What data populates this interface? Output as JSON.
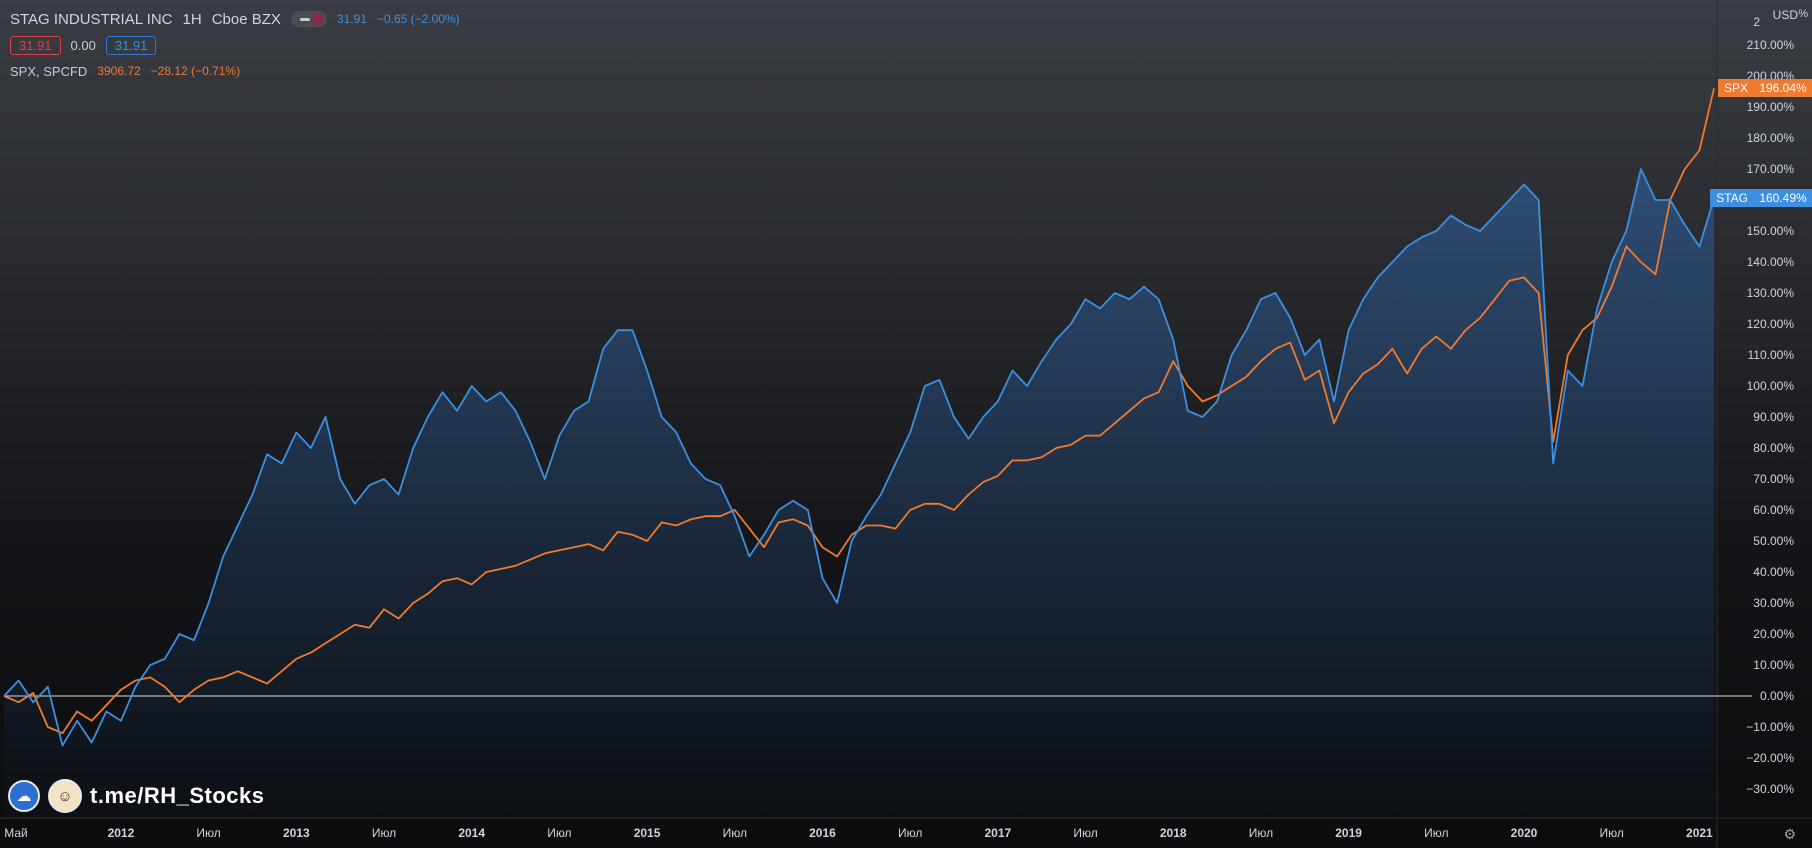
{
  "legend": {
    "symbol_title": "STAG INDUSTRIAL INC",
    "interval": "1H",
    "exchange": "Cboe BZX",
    "stag_quote": "31.91",
    "stag_change": "−0.65 (−2.00%)",
    "box_sell": "31.91",
    "spread": "0.00",
    "box_buy": "31.91",
    "compare_name": "SPX, SPCFD",
    "compare_quote": "3906.72",
    "compare_change": "−28.12 (−0.71%)"
  },
  "axis": {
    "currency": "USD",
    "scale_mode": "%",
    "scale_multiplier": "2",
    "right_labels": [
      "210.00%",
      "200.00%",
      "190.00%",
      "180.00%",
      "170.00%",
      "160.00%",
      "150.00%",
      "140.00%",
      "130.00%",
      "120.00%",
      "110.00%",
      "100.00%",
      "90.00%",
      "80.00%",
      "70.00%",
      "60.00%",
      "50.00%",
      "40.00%",
      "30.00%",
      "20.00%",
      "10.00%",
      "0.00%",
      "−10.00%",
      "−20.00%",
      "−30.00%"
    ],
    "time_labels": [
      {
        "text": "Май",
        "year": false
      },
      {
        "text": "2012",
        "year": true
      },
      {
        "text": "Июл",
        "year": false
      },
      {
        "text": "2013",
        "year": true
      },
      {
        "text": "Июл",
        "year": false
      },
      {
        "text": "2014",
        "year": true
      },
      {
        "text": "Июл",
        "year": false
      },
      {
        "text": "2015",
        "year": true
      },
      {
        "text": "Июл",
        "year": false
      },
      {
        "text": "2016",
        "year": true
      },
      {
        "text": "Июл",
        "year": false
      },
      {
        "text": "2017",
        "year": true
      },
      {
        "text": "Июл",
        "year": false
      },
      {
        "text": "2018",
        "year": true
      },
      {
        "text": "Июл",
        "year": false
      },
      {
        "text": "2019",
        "year": true
      },
      {
        "text": "Июл",
        "year": false
      },
      {
        "text": "2020",
        "year": true
      },
      {
        "text": "Июл",
        "year": false
      },
      {
        "text": "2021",
        "year": true
      }
    ]
  },
  "price_tags": {
    "spx": {
      "name": "SPX",
      "value": "196.04%"
    },
    "stag": {
      "name": "STAG",
      "value": "160.49%"
    }
  },
  "watermark": {
    "text": "t.me/RH_Stocks"
  },
  "colors": {
    "stag": "#3d8fe0",
    "spx": "#f07a2e",
    "baseline": "#d8dadf"
  },
  "chart_data": {
    "type": "line",
    "title": "STAG INDUSTRIAL INC",
    "x_range": [
      "2011-05",
      "2021-02"
    ],
    "ylim": [
      -35,
      215
    ],
    "y_unit": "%",
    "grid": false,
    "series": [
      {
        "name": "STAG",
        "color": "#3d8fe0",
        "points": [
          [
            "2011-05",
            0
          ],
          [
            "2011-06",
            5
          ],
          [
            "2011-07",
            -2
          ],
          [
            "2011-08",
            3
          ],
          [
            "2011-09",
            -16
          ],
          [
            "2011-10",
            -8
          ],
          [
            "2011-11",
            -15
          ],
          [
            "2011-12",
            -5
          ],
          [
            "2012-01",
            -8
          ],
          [
            "2012-02",
            3
          ],
          [
            "2012-03",
            10
          ],
          [
            "2012-04",
            12
          ],
          [
            "2012-05",
            20
          ],
          [
            "2012-06",
            18
          ],
          [
            "2012-07",
            30
          ],
          [
            "2012-08",
            45
          ],
          [
            "2012-09",
            55
          ],
          [
            "2012-10",
            65
          ],
          [
            "2012-11",
            78
          ],
          [
            "2012-12",
            75
          ],
          [
            "2013-01",
            85
          ],
          [
            "2013-02",
            80
          ],
          [
            "2013-03",
            90
          ],
          [
            "2013-04",
            70
          ],
          [
            "2013-05",
            62
          ],
          [
            "2013-06",
            68
          ],
          [
            "2013-07",
            70
          ],
          [
            "2013-08",
            65
          ],
          [
            "2013-09",
            80
          ],
          [
            "2013-10",
            90
          ],
          [
            "2013-11",
            98
          ],
          [
            "2013-12",
            92
          ],
          [
            "2014-01",
            100
          ],
          [
            "2014-02",
            95
          ],
          [
            "2014-03",
            98
          ],
          [
            "2014-04",
            92
          ],
          [
            "2014-05",
            82
          ],
          [
            "2014-06",
            70
          ],
          [
            "2014-07",
            84
          ],
          [
            "2014-08",
            92
          ],
          [
            "2014-09",
            95
          ],
          [
            "2014-10",
            112
          ],
          [
            "2014-11",
            118
          ],
          [
            "2014-12",
            118
          ],
          [
            "2015-01",
            105
          ],
          [
            "2015-02",
            90
          ],
          [
            "2015-03",
            85
          ],
          [
            "2015-04",
            75
          ],
          [
            "2015-05",
            70
          ],
          [
            "2015-06",
            68
          ],
          [
            "2015-07",
            58
          ],
          [
            "2015-08",
            45
          ],
          [
            "2015-09",
            52
          ],
          [
            "2015-10",
            60
          ],
          [
            "2015-11",
            63
          ],
          [
            "2015-12",
            60
          ],
          [
            "2016-01",
            38
          ],
          [
            "2016-02",
            30
          ],
          [
            "2016-03",
            50
          ],
          [
            "2016-04",
            58
          ],
          [
            "2016-05",
            65
          ],
          [
            "2016-06",
            75
          ],
          [
            "2016-07",
            85
          ],
          [
            "2016-08",
            100
          ],
          [
            "2016-09",
            102
          ],
          [
            "2016-10",
            90
          ],
          [
            "2016-11",
            83
          ],
          [
            "2016-12",
            90
          ],
          [
            "2017-01",
            95
          ],
          [
            "2017-02",
            105
          ],
          [
            "2017-03",
            100
          ],
          [
            "2017-04",
            108
          ],
          [
            "2017-05",
            115
          ],
          [
            "2017-06",
            120
          ],
          [
            "2017-07",
            128
          ],
          [
            "2017-08",
            125
          ],
          [
            "2017-09",
            130
          ],
          [
            "2017-10",
            128
          ],
          [
            "2017-11",
            132
          ],
          [
            "2017-12",
            128
          ],
          [
            "2018-01",
            115
          ],
          [
            "2018-02",
            92
          ],
          [
            "2018-03",
            90
          ],
          [
            "2018-04",
            95
          ],
          [
            "2018-05",
            110
          ],
          [
            "2018-06",
            118
          ],
          [
            "2018-07",
            128
          ],
          [
            "2018-08",
            130
          ],
          [
            "2018-09",
            122
          ],
          [
            "2018-10",
            110
          ],
          [
            "2018-11",
            115
          ],
          [
            "2018-12",
            95
          ],
          [
            "2019-01",
            118
          ],
          [
            "2019-02",
            128
          ],
          [
            "2019-03",
            135
          ],
          [
            "2019-04",
            140
          ],
          [
            "2019-05",
            145
          ],
          [
            "2019-06",
            148
          ],
          [
            "2019-07",
            150
          ],
          [
            "2019-08",
            155
          ],
          [
            "2019-09",
            152
          ],
          [
            "2019-10",
            150
          ],
          [
            "2019-11",
            155
          ],
          [
            "2019-12",
            160
          ],
          [
            "2020-01",
            165
          ],
          [
            "2020-02",
            160
          ],
          [
            "2020-03",
            75
          ],
          [
            "2020-04",
            105
          ],
          [
            "2020-05",
            100
          ],
          [
            "2020-06",
            125
          ],
          [
            "2020-07",
            140
          ],
          [
            "2020-08",
            150
          ],
          [
            "2020-09",
            170
          ],
          [
            "2020-10",
            160
          ],
          [
            "2020-11",
            160
          ],
          [
            "2020-12",
            152
          ],
          [
            "2021-01",
            145
          ],
          [
            "2021-02",
            160.49
          ]
        ]
      },
      {
        "name": "SPX",
        "color": "#f07a2e",
        "points": [
          [
            "2011-05",
            0
          ],
          [
            "2011-06",
            -2
          ],
          [
            "2011-07",
            1
          ],
          [
            "2011-08",
            -10
          ],
          [
            "2011-09",
            -12
          ],
          [
            "2011-10",
            -5
          ],
          [
            "2011-11",
            -8
          ],
          [
            "2011-12",
            -3
          ],
          [
            "2012-01",
            2
          ],
          [
            "2012-02",
            5
          ],
          [
            "2012-03",
            6
          ],
          [
            "2012-04",
            3
          ],
          [
            "2012-05",
            -2
          ],
          [
            "2012-06",
            2
          ],
          [
            "2012-07",
            5
          ],
          [
            "2012-08",
            6
          ],
          [
            "2012-09",
            8
          ],
          [
            "2012-10",
            6
          ],
          [
            "2012-11",
            4
          ],
          [
            "2012-12",
            8
          ],
          [
            "2013-01",
            12
          ],
          [
            "2013-02",
            14
          ],
          [
            "2013-03",
            17
          ],
          [
            "2013-04",
            20
          ],
          [
            "2013-05",
            23
          ],
          [
            "2013-06",
            22
          ],
          [
            "2013-07",
            28
          ],
          [
            "2013-08",
            25
          ],
          [
            "2013-09",
            30
          ],
          [
            "2013-10",
            33
          ],
          [
            "2013-11",
            37
          ],
          [
            "2013-12",
            38
          ],
          [
            "2014-01",
            36
          ],
          [
            "2014-02",
            40
          ],
          [
            "2014-03",
            41
          ],
          [
            "2014-04",
            42
          ],
          [
            "2014-05",
            44
          ],
          [
            "2014-06",
            46
          ],
          [
            "2014-07",
            47
          ],
          [
            "2014-08",
            48
          ],
          [
            "2014-09",
            49
          ],
          [
            "2014-10",
            47
          ],
          [
            "2014-11",
            53
          ],
          [
            "2014-12",
            52
          ],
          [
            "2015-01",
            50
          ],
          [
            "2015-02",
            56
          ],
          [
            "2015-03",
            55
          ],
          [
            "2015-04",
            57
          ],
          [
            "2015-05",
            58
          ],
          [
            "2015-06",
            58
          ],
          [
            "2015-07",
            60
          ],
          [
            "2015-08",
            54
          ],
          [
            "2015-09",
            48
          ],
          [
            "2015-10",
            56
          ],
          [
            "2015-11",
            57
          ],
          [
            "2015-12",
            55
          ],
          [
            "2016-01",
            48
          ],
          [
            "2016-02",
            45
          ],
          [
            "2016-03",
            52
          ],
          [
            "2016-04",
            55
          ],
          [
            "2016-05",
            55
          ],
          [
            "2016-06",
            54
          ],
          [
            "2016-07",
            60
          ],
          [
            "2016-08",
            62
          ],
          [
            "2016-09",
            62
          ],
          [
            "2016-10",
            60
          ],
          [
            "2016-11",
            65
          ],
          [
            "2016-12",
            69
          ],
          [
            "2017-01",
            71
          ],
          [
            "2017-02",
            76
          ],
          [
            "2017-03",
            76
          ],
          [
            "2017-04",
            77
          ],
          [
            "2017-05",
            80
          ],
          [
            "2017-06",
            81
          ],
          [
            "2017-07",
            84
          ],
          [
            "2017-08",
            84
          ],
          [
            "2017-09",
            88
          ],
          [
            "2017-10",
            92
          ],
          [
            "2017-11",
            96
          ],
          [
            "2017-12",
            98
          ],
          [
            "2018-01",
            108
          ],
          [
            "2018-02",
            100
          ],
          [
            "2018-03",
            95
          ],
          [
            "2018-04",
            97
          ],
          [
            "2018-05",
            100
          ],
          [
            "2018-06",
            103
          ],
          [
            "2018-07",
            108
          ],
          [
            "2018-08",
            112
          ],
          [
            "2018-09",
            114
          ],
          [
            "2018-10",
            102
          ],
          [
            "2018-11",
            105
          ],
          [
            "2018-12",
            88
          ],
          [
            "2019-01",
            98
          ],
          [
            "2019-02",
            104
          ],
          [
            "2019-03",
            107
          ],
          [
            "2019-04",
            112
          ],
          [
            "2019-05",
            104
          ],
          [
            "2019-06",
            112
          ],
          [
            "2019-07",
            116
          ],
          [
            "2019-08",
            112
          ],
          [
            "2019-09",
            118
          ],
          [
            "2019-10",
            122
          ],
          [
            "2019-11",
            128
          ],
          [
            "2019-12",
            134
          ],
          [
            "2020-01",
            135
          ],
          [
            "2020-02",
            130
          ],
          [
            "2020-03",
            82
          ],
          [
            "2020-04",
            110
          ],
          [
            "2020-05",
            118
          ],
          [
            "2020-06",
            122
          ],
          [
            "2020-07",
            132
          ],
          [
            "2020-08",
            145
          ],
          [
            "2020-09",
            140
          ],
          [
            "2020-10",
            136
          ],
          [
            "2020-11",
            160
          ],
          [
            "2020-12",
            170
          ],
          [
            "2021-01",
            176
          ],
          [
            "2021-02",
            196.04
          ]
        ]
      }
    ]
  }
}
